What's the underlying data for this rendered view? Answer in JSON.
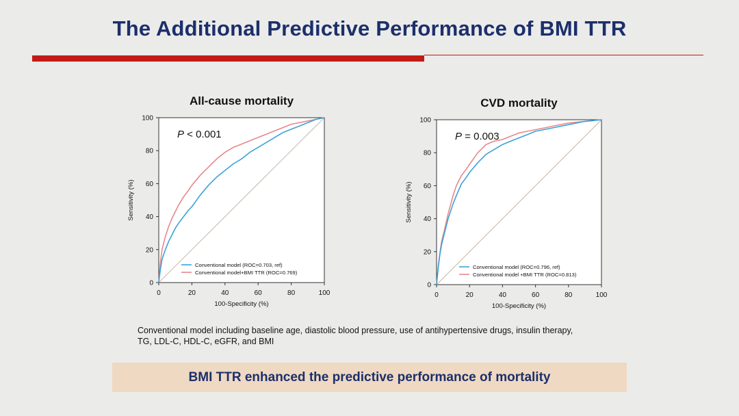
{
  "slide": {
    "title": "The Additional Predictive Performance of BMI TTR",
    "footnote_line1": "Conventional model including baseline age, diastolic blood pressure, use of antihypertensive drugs, insulin therapy,",
    "footnote_line2": "TG, LDL-C, HDL-C, eGFR, and BMI",
    "conclusion": "BMI TTR enhanced the predictive performance of mortality",
    "colors": {
      "title": "#1c2f6b",
      "rule": "#c21b17",
      "banner": "#efd9c3",
      "conventional": "#3aa3d8",
      "bmi_ttr": "#e8878b",
      "reference": "#c8b8a8"
    }
  },
  "chart_data": [
    {
      "type": "line",
      "title": "All-cause mortality",
      "annotation_p": "P",
      "annotation_rest": " < 0.001",
      "xlabel": "100-Specificity (%)",
      "ylabel": "Sensitivity (%)",
      "xlim": [
        0,
        100
      ],
      "ylim": [
        0,
        100
      ],
      "xticks": [
        0,
        20,
        40,
        60,
        80,
        100
      ],
      "yticks": [
        0,
        20,
        40,
        60,
        80,
        100
      ],
      "grid": false,
      "legend_position": "bottom-right",
      "reference_line": true,
      "series": [
        {
          "name": "Conventional model (ROC=0.703, ref)",
          "color": "#3aa3d8",
          "x": [
            0,
            1,
            2,
            4,
            6,
            8,
            10,
            12,
            15,
            18,
            20,
            25,
            30,
            35,
            40,
            45,
            50,
            55,
            60,
            65,
            70,
            75,
            80,
            85,
            90,
            95,
            100
          ],
          "y": [
            0,
            8,
            14,
            20,
            25,
            29,
            33,
            36,
            40,
            44,
            46,
            53,
            59,
            64,
            68,
            72,
            75,
            79,
            82,
            85,
            88,
            91,
            93,
            95,
            97,
            99,
            100
          ]
        },
        {
          "name": "Conventional model+BMI TTR (ROC=0.769)",
          "color": "#e8878b",
          "x": [
            0,
            1,
            2,
            4,
            6,
            8,
            10,
            12,
            15,
            18,
            20,
            25,
            30,
            35,
            40,
            45,
            50,
            55,
            60,
            65,
            70,
            75,
            80,
            85,
            90,
            95,
            100
          ],
          "y": [
            0,
            12,
            20,
            28,
            34,
            39,
            43,
            47,
            52,
            56,
            59,
            65,
            70,
            75,
            79,
            82,
            84,
            86,
            88,
            90,
            92,
            94,
            96,
            97,
            98,
            99,
            100
          ]
        }
      ]
    },
    {
      "type": "line",
      "title": "CVD mortality",
      "annotation_p": "P",
      "annotation_rest": " = 0.003",
      "xlabel": "100-Specificity (%)",
      "ylabel": "Sensitivity (%)",
      "xlim": [
        0,
        100
      ],
      "ylim": [
        0,
        100
      ],
      "xticks": [
        0,
        20,
        40,
        60,
        80,
        100
      ],
      "yticks": [
        0,
        20,
        40,
        60,
        80,
        100
      ],
      "grid": false,
      "legend_position": "bottom-right",
      "reference_line": true,
      "series": [
        {
          "name": "Conventional model (ROC=0.796, ref)",
          "color": "#3aa3d8",
          "x": [
            0,
            1,
            2,
            3,
            5,
            7,
            10,
            12,
            15,
            18,
            20,
            25,
            30,
            35,
            40,
            45,
            50,
            55,
            60,
            65,
            70,
            80,
            90,
            100
          ],
          "y": [
            0,
            10,
            18,
            24,
            32,
            40,
            49,
            54,
            61,
            65,
            68,
            74,
            79,
            82,
            85,
            87,
            89,
            91,
            93,
            94,
            95,
            97,
            99,
            100
          ]
        },
        {
          "name": "Conventional model +BMI TTR (ROC=0.813)",
          "color": "#e8878b",
          "x": [
            0,
            1,
            2,
            3,
            5,
            7,
            10,
            12,
            15,
            18,
            20,
            25,
            30,
            35,
            40,
            45,
            50,
            55,
            60,
            65,
            70,
            80,
            90,
            100
          ],
          "y": [
            0,
            11,
            19,
            26,
            34,
            43,
            54,
            60,
            66,
            70,
            73,
            80,
            85,
            87,
            88,
            90,
            92,
            93,
            94,
            95,
            96,
            98,
            99,
            100
          ]
        }
      ]
    }
  ]
}
